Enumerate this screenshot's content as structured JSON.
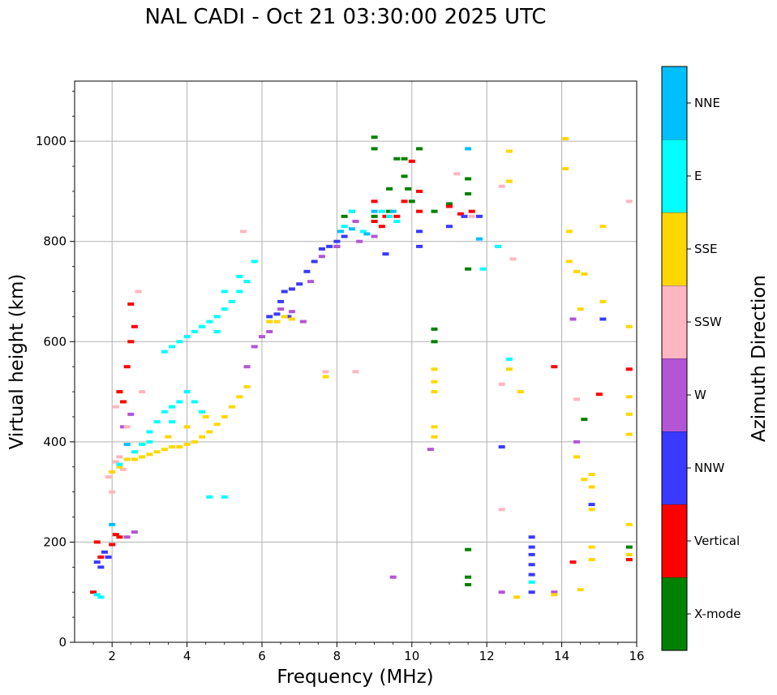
{
  "chart_data": {
    "type": "scatter",
    "title": "NAL CADI - Oct 21 03:30:00 2025 UTC",
    "xlabel": "Frequency (MHz)",
    "ylabel": "Virtual height (km)",
    "xlim": [
      1,
      16
    ],
    "ylim": [
      0,
      1120
    ],
    "x_ticks": [
      "2",
      "4",
      "6",
      "8",
      "10",
      "12",
      "14",
      "16"
    ],
    "y_ticks": [
      "0",
      "200",
      "400",
      "600",
      "800",
      "1000"
    ],
    "grid": true,
    "colorbar": {
      "label": "Azimuth Direction",
      "categories": [
        "X-mode",
        "Vertical",
        "NNW",
        "W",
        "SSW",
        "SSE",
        "E",
        "NNE"
      ],
      "colors": [
        "#008000",
        "#ff0000",
        "#3a3aff",
        "#b455d6",
        "#ffb6c1",
        "#ffd700",
        "#00ffff",
        "#00bfff"
      ]
    },
    "series": [
      {
        "name": "X-mode",
        "points": [
          [
            9.0,
            1008
          ],
          [
            9.0,
            985
          ],
          [
            9.4,
            905
          ],
          [
            9.6,
            965
          ],
          [
            9.8,
            965
          ],
          [
            9.8,
            930
          ],
          [
            10.2,
            985
          ],
          [
            9.9,
            905
          ],
          [
            10.0,
            880
          ],
          [
            10.6,
            860
          ],
          [
            11.0,
            875
          ],
          [
            11.5,
            925
          ],
          [
            11.5,
            895
          ],
          [
            11.5,
            745
          ],
          [
            11.5,
            185
          ],
          [
            11.5,
            130
          ],
          [
            11.5,
            115
          ],
          [
            9.0,
            850
          ],
          [
            9.4,
            860
          ],
          [
            8.2,
            850
          ],
          [
            8.4,
            860
          ],
          [
            10.6,
            625
          ],
          [
            10.6,
            600
          ],
          [
            14.6,
            445
          ],
          [
            15.8,
            190
          ],
          [
            8.0,
            790
          ]
        ]
      },
      {
        "name": "Vertical",
        "points": [
          [
            1.5,
            100
          ],
          [
            1.6,
            200
          ],
          [
            1.7,
            170
          ],
          [
            2.0,
            195
          ],
          [
            2.1,
            215
          ],
          [
            2.2,
            210
          ],
          [
            2.2,
            500
          ],
          [
            2.3,
            480
          ],
          [
            2.4,
            550
          ],
          [
            2.5,
            600
          ],
          [
            2.5,
            675
          ],
          [
            2.6,
            630
          ],
          [
            9.0,
            880
          ],
          [
            9.0,
            840
          ],
          [
            9.2,
            830
          ],
          [
            9.3,
            850
          ],
          [
            9.6,
            850
          ],
          [
            9.8,
            880
          ],
          [
            10.0,
            960
          ],
          [
            10.2,
            900
          ],
          [
            10.2,
            860
          ],
          [
            11.0,
            870
          ],
          [
            11.3,
            855
          ],
          [
            11.6,
            860
          ],
          [
            13.8,
            550
          ],
          [
            14.3,
            160
          ],
          [
            15.0,
            495
          ],
          [
            15.8,
            545
          ],
          [
            15.8,
            165
          ]
        ]
      },
      {
        "name": "NNW",
        "points": [
          [
            1.6,
            160
          ],
          [
            1.7,
            150
          ],
          [
            1.8,
            180
          ],
          [
            1.9,
            170
          ],
          [
            6.2,
            650
          ],
          [
            6.4,
            655
          ],
          [
            6.5,
            680
          ],
          [
            6.6,
            700
          ],
          [
            6.8,
            705
          ],
          [
            7.0,
            715
          ],
          [
            7.2,
            740
          ],
          [
            7.4,
            760
          ],
          [
            7.6,
            785
          ],
          [
            7.8,
            790
          ],
          [
            8.0,
            800
          ],
          [
            8.2,
            810
          ],
          [
            9.3,
            775
          ],
          [
            10.2,
            820
          ],
          [
            10.2,
            790
          ],
          [
            11.0,
            830
          ],
          [
            11.4,
            850
          ],
          [
            11.8,
            850
          ],
          [
            12.4,
            390
          ],
          [
            13.2,
            210
          ],
          [
            13.2,
            190
          ],
          [
            13.2,
            175
          ],
          [
            13.2,
            155
          ],
          [
            13.2,
            135
          ],
          [
            13.2,
            100
          ],
          [
            14.8,
            275
          ],
          [
            15.1,
            645
          ],
          [
            6.7,
            650
          ]
        ]
      },
      {
        "name": "W",
        "points": [
          [
            2.4,
            210
          ],
          [
            2.6,
            220
          ],
          [
            2.3,
            430
          ],
          [
            2.5,
            455
          ],
          [
            5.6,
            550
          ],
          [
            5.8,
            590
          ],
          [
            6.0,
            610
          ],
          [
            6.2,
            620
          ],
          [
            6.5,
            665
          ],
          [
            6.8,
            660
          ],
          [
            7.1,
            640
          ],
          [
            7.3,
            720
          ],
          [
            7.6,
            770
          ],
          [
            8.0,
            790
          ],
          [
            8.5,
            840
          ],
          [
            8.6,
            800
          ],
          [
            9.0,
            810
          ],
          [
            9.5,
            130
          ],
          [
            10.5,
            385
          ],
          [
            12.4,
            100
          ],
          [
            13.8,
            100
          ],
          [
            14.3,
            645
          ],
          [
            14.4,
            400
          ]
        ]
      },
      {
        "name": "SSW",
        "points": [
          [
            2.1,
            360
          ],
          [
            2.2,
            370
          ],
          [
            2.3,
            345
          ],
          [
            2.0,
            300
          ],
          [
            1.9,
            330
          ],
          [
            2.1,
            470
          ],
          [
            2.4,
            430
          ],
          [
            2.7,
            700
          ],
          [
            2.8,
            500
          ],
          [
            5.5,
            820
          ],
          [
            7.7,
            540
          ],
          [
            8.5,
            540
          ],
          [
            11.2,
            935
          ],
          [
            11.6,
            850
          ],
          [
            12.4,
            910
          ],
          [
            12.4,
            515
          ],
          [
            12.4,
            265
          ],
          [
            12.7,
            765
          ],
          [
            14.4,
            485
          ],
          [
            15.8,
            880
          ]
        ]
      },
      {
        "name": "SSE",
        "points": [
          [
            2.0,
            340
          ],
          [
            2.2,
            350
          ],
          [
            2.4,
            365
          ],
          [
            2.6,
            365
          ],
          [
            2.8,
            370
          ],
          [
            3.0,
            375
          ],
          [
            3.2,
            380
          ],
          [
            3.4,
            385
          ],
          [
            3.6,
            390
          ],
          [
            3.8,
            390
          ],
          [
            4.0,
            395
          ],
          [
            4.2,
            400
          ],
          [
            4.4,
            410
          ],
          [
            4.6,
            420
          ],
          [
            4.8,
            435
          ],
          [
            5.0,
            450
          ],
          [
            5.2,
            470
          ],
          [
            5.4,
            490
          ],
          [
            5.6,
            510
          ],
          [
            4.5,
            450
          ],
          [
            4.0,
            430
          ],
          [
            3.5,
            410
          ],
          [
            6.2,
            640
          ],
          [
            6.4,
            640
          ],
          [
            6.6,
            650
          ],
          [
            6.8,
            645
          ],
          [
            7.7,
            530
          ],
          [
            10.6,
            545
          ],
          [
            10.6,
            520
          ],
          [
            10.6,
            500
          ],
          [
            10.6,
            430
          ],
          [
            10.6,
            410
          ],
          [
            12.6,
            980
          ],
          [
            12.6,
            920
          ],
          [
            12.6,
            545
          ],
          [
            12.9,
            500
          ],
          [
            12.8,
            90
          ],
          [
            13.8,
            95
          ],
          [
            14.1,
            1005
          ],
          [
            14.1,
            945
          ],
          [
            14.2,
            820
          ],
          [
            14.2,
            760
          ],
          [
            14.4,
            740
          ],
          [
            14.5,
            665
          ],
          [
            14.6,
            735
          ],
          [
            14.4,
            370
          ],
          [
            14.6,
            325
          ],
          [
            14.8,
            335
          ],
          [
            14.8,
            310
          ],
          [
            14.8,
            265
          ],
          [
            14.8,
            190
          ],
          [
            14.8,
            165
          ],
          [
            14.5,
            105
          ],
          [
            15.1,
            830
          ],
          [
            15.1,
            680
          ],
          [
            15.8,
            630
          ],
          [
            15.8,
            490
          ],
          [
            15.8,
            455
          ],
          [
            15.8,
            415
          ],
          [
            15.8,
            235
          ],
          [
            15.8,
            175
          ]
        ]
      },
      {
        "name": "E",
        "points": [
          [
            1.6,
            95
          ],
          [
            1.7,
            90
          ],
          [
            2.2,
            355
          ],
          [
            2.6,
            380
          ],
          [
            2.8,
            395
          ],
          [
            3.0,
            420
          ],
          [
            3.2,
            440
          ],
          [
            3.4,
            460
          ],
          [
            3.6,
            470
          ],
          [
            3.8,
            480
          ],
          [
            4.0,
            500
          ],
          [
            4.2,
            480
          ],
          [
            4.4,
            460
          ],
          [
            3.6,
            440
          ],
          [
            3.0,
            400
          ],
          [
            3.4,
            580
          ],
          [
            3.6,
            590
          ],
          [
            3.8,
            600
          ],
          [
            4.0,
            610
          ],
          [
            4.2,
            620
          ],
          [
            4.4,
            630
          ],
          [
            4.6,
            640
          ],
          [
            4.8,
            650
          ],
          [
            5.0,
            665
          ],
          [
            5.2,
            680
          ],
          [
            5.4,
            700
          ],
          [
            5.6,
            720
          ],
          [
            5.8,
            760
          ],
          [
            5.0,
            700
          ],
          [
            4.8,
            620
          ],
          [
            5.4,
            730
          ],
          [
            4.6,
            290
          ],
          [
            5.0,
            290
          ],
          [
            8.2,
            830
          ],
          [
            8.4,
            860
          ],
          [
            8.7,
            820
          ],
          [
            9.2,
            860
          ],
          [
            9.4,
            850
          ],
          [
            9.6,
            840
          ],
          [
            11.9,
            745
          ],
          [
            12.3,
            790
          ],
          [
            12.6,
            565
          ],
          [
            13.2,
            120
          ]
        ]
      },
      {
        "name": "NNE",
        "points": [
          [
            8.1,
            820
          ],
          [
            8.4,
            825
          ],
          [
            8.8,
            815
          ],
          [
            9.0,
            860
          ],
          [
            9.5,
            860
          ],
          [
            11.5,
            985
          ],
          [
            11.8,
            805
          ],
          [
            2.0,
            235
          ],
          [
            2.4,
            395
          ]
        ]
      }
    ]
  }
}
